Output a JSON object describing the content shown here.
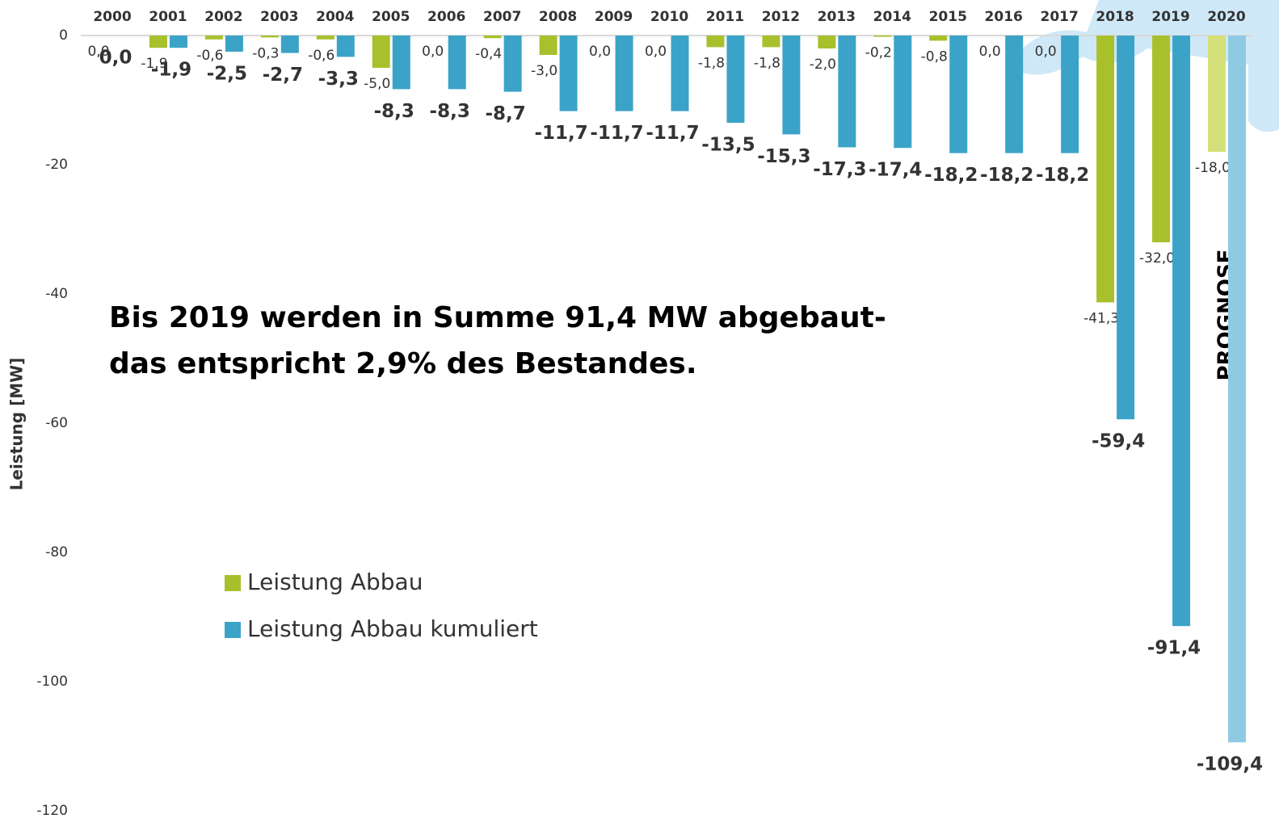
{
  "chart_data": {
    "type": "bar",
    "y_axis_label": "Leistung [MW]",
    "categories": [
      "2000",
      "2001",
      "2002",
      "2003",
      "2004",
      "2005",
      "2006",
      "2007",
      "2008",
      "2009",
      "2010",
      "2011",
      "2012",
      "2013",
      "2014",
      "2015",
      "2016",
      "2017",
      "2018",
      "2019",
      "2020"
    ],
    "ylim": [
      -120,
      0
    ],
    "yticks": [
      0,
      -20,
      -40,
      -60,
      -80,
      -100,
      -120
    ],
    "annotations": [
      "Bis 2019 werden in Summe 91,4 MW abgebaut-",
      "das entspricht 2,9% des Bestandes.",
      "PROGNOSE"
    ],
    "series": [
      {
        "name": "Leistung Abbau",
        "color": "#a9c02d",
        "colors": [
          "#a9c02d",
          "#a9c02d",
          "#a9c02d",
          "#a9c02d",
          "#a9c02d",
          "#a9c02d",
          "#a9c02d",
          "#a9c02d",
          "#a9c02d",
          "#a9c02d",
          "#a9c02d",
          "#a9c02d",
          "#a9c02d",
          "#a9c02d",
          "#a9c02d",
          "#a9c02d",
          "#a9c02d",
          "#a9c02d",
          "#a9c02d",
          "#a9c02d",
          "#d4e07a"
        ],
        "values": [
          0,
          -1.9,
          -0.6,
          -0.3,
          -0.6,
          -5.0,
          0,
          -0.4,
          -3.0,
          0,
          0,
          -1.8,
          -1.8,
          -2.0,
          -0.2,
          -0.8,
          0,
          0,
          -41.3,
          -32.0,
          -18.0
        ],
        "value_labels": [
          "0,0",
          "-1,9",
          "-0,6",
          "-0,3",
          "-0,6",
          "-5,0",
          "0,0",
          "-0,4",
          "-3,0",
          "0,0",
          "0,0",
          "-1,8",
          "-1,8",
          "-2,0",
          "-0,2",
          "-0,8",
          "0,0",
          "0,0",
          "-41,3",
          "-32,0",
          "-18,0"
        ]
      },
      {
        "name": "Leistung Abbau kumuliert",
        "color": "#3ba3c8",
        "colors": [
          "#3ba3c8",
          "#3ba3c8",
          "#3ba3c8",
          "#3ba3c8",
          "#3ba3c8",
          "#3ba3c8",
          "#3ba3c8",
          "#3ba3c8",
          "#3ba3c8",
          "#3ba3c8",
          "#3ba3c8",
          "#3ba3c8",
          "#3ba3c8",
          "#3ba3c8",
          "#3ba3c8",
          "#3ba3c8",
          "#3ba3c8",
          "#3ba3c8",
          "#3ba3c8",
          "#3ba3c8",
          "#8ecbe2"
        ],
        "values": [
          0,
          -1.9,
          -2.5,
          -2.7,
          -3.3,
          -8.3,
          -8.3,
          -8.7,
          -11.7,
          -11.7,
          -11.7,
          -13.5,
          -15.3,
          -17.3,
          -17.4,
          -18.2,
          -18.2,
          -18.2,
          -59.4,
          -91.4,
          -109.4
        ],
        "value_labels": [
          "0,0",
          "-1,9",
          "-2,5",
          "-2,7",
          "-3,3",
          "-8,3",
          "-8,3",
          "-8,7",
          "-11,7",
          "-11,7",
          "-11,7",
          "-13,5",
          "-15,3",
          "-17,3",
          "-17,4",
          "-18,2",
          "-18,2",
          "-18,2",
          "-59,4",
          "-91,4",
          "-109,4"
        ]
      }
    ]
  }
}
